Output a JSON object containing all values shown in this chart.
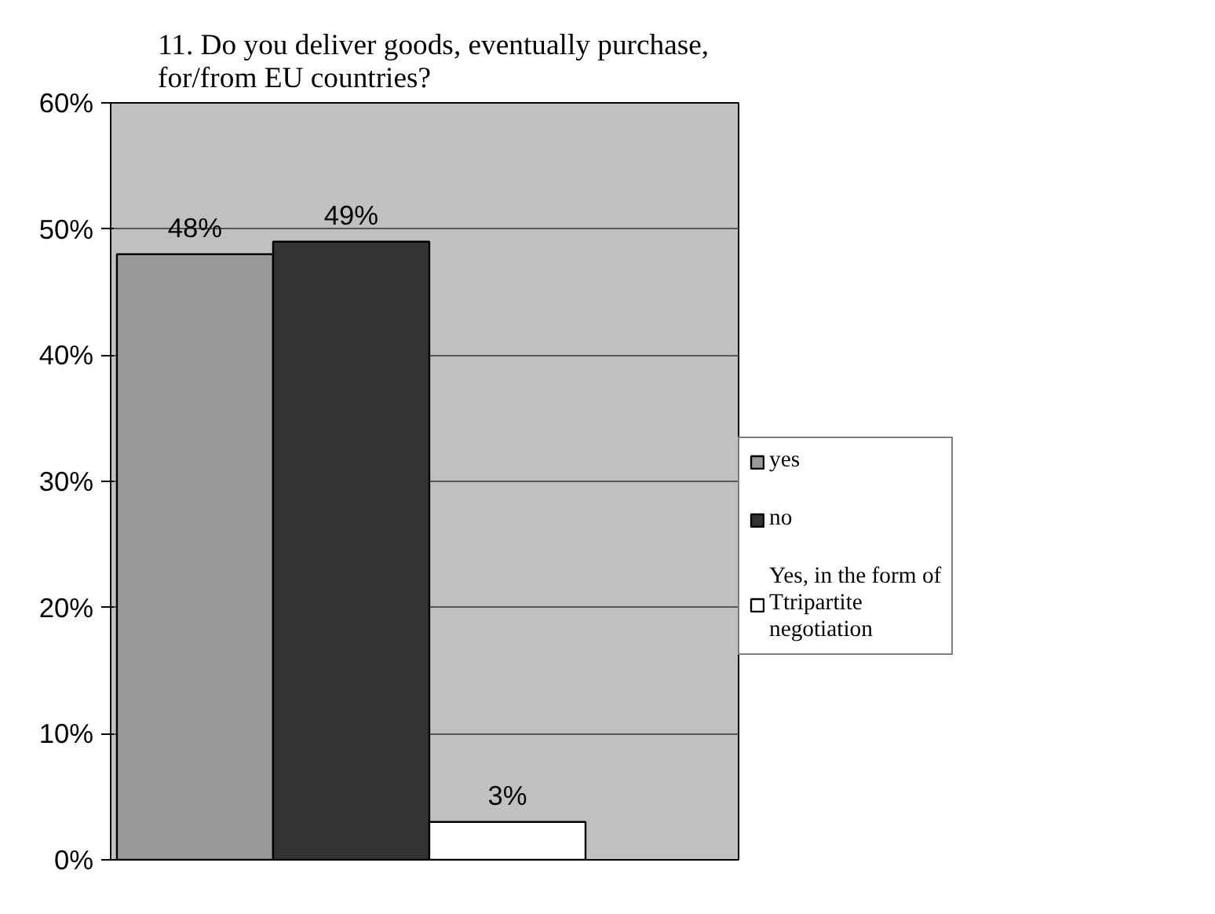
{
  "chart_data": {
    "type": "bar",
    "title": "11. Do you deliver goods, eventually purchase, for/from EU countries?",
    "categories": [
      null
    ],
    "series": [
      {
        "name": "yes",
        "color": "#999999",
        "values": [
          48
        ],
        "value_labels": [
          "48%"
        ]
      },
      {
        "name": "no",
        "color": "#333333",
        "values": [
          49
        ],
        "value_labels": [
          "49%"
        ]
      },
      {
        "name": "Yes, in the form of Ttripartite negotiation",
        "color": "#ffffff",
        "values": [
          3
        ],
        "value_labels": [
          "3%"
        ]
      }
    ],
    "ylim": [
      0,
      60
    ],
    "yticks": [
      {
        "value": 0,
        "label": "0%"
      },
      {
        "value": 10,
        "label": "10%"
      },
      {
        "value": 20,
        "label": "20%"
      },
      {
        "value": 30,
        "label": "30%"
      },
      {
        "value": 40,
        "label": "40%"
      },
      {
        "value": 50,
        "label": "50%"
      },
      {
        "value": 60,
        "label": "60%"
      }
    ],
    "grid": "y",
    "legend": "right"
  }
}
